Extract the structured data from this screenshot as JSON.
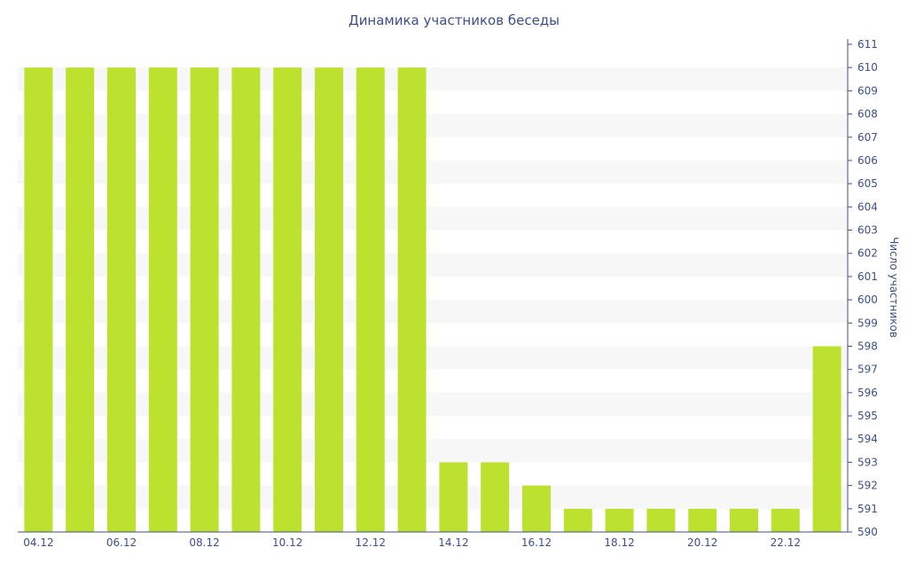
{
  "chart_data": {
    "type": "bar",
    "title": "Динамика участников беседы",
    "xlabel": "",
    "ylabel": "Число участников",
    "ylim": [
      590,
      611
    ],
    "y_axis_position": "right",
    "grid": "horizontal alternating bands",
    "legend": "none",
    "colors": {
      "bar": "#bde12f",
      "band": "#f7f7f7",
      "axis": "#3c4f8a",
      "text": "#3c4f8a"
    },
    "categories": [
      "04.12",
      "05.12",
      "06.12",
      "07.12",
      "08.12",
      "09.12",
      "10.12",
      "11.12",
      "12.12",
      "13.12",
      "14.12",
      "15.12",
      "16.12",
      "17.12",
      "18.12",
      "19.12",
      "20.12",
      "21.12",
      "22.12",
      "23.12"
    ],
    "x_tick_labels": [
      "04.12",
      "06.12",
      "08.12",
      "10.12",
      "12.12",
      "14.12",
      "16.12",
      "18.12",
      "20.12",
      "22.12"
    ],
    "y_ticks": [
      590,
      591,
      592,
      593,
      594,
      595,
      596,
      597,
      598,
      599,
      600,
      601,
      602,
      603,
      604,
      605,
      606,
      607,
      608,
      609,
      610,
      611
    ],
    "values": [
      610,
      610,
      610,
      610,
      610,
      610,
      610,
      610,
      610,
      610,
      593,
      593,
      592,
      591,
      591,
      591,
      591,
      591,
      591,
      598
    ]
  }
}
